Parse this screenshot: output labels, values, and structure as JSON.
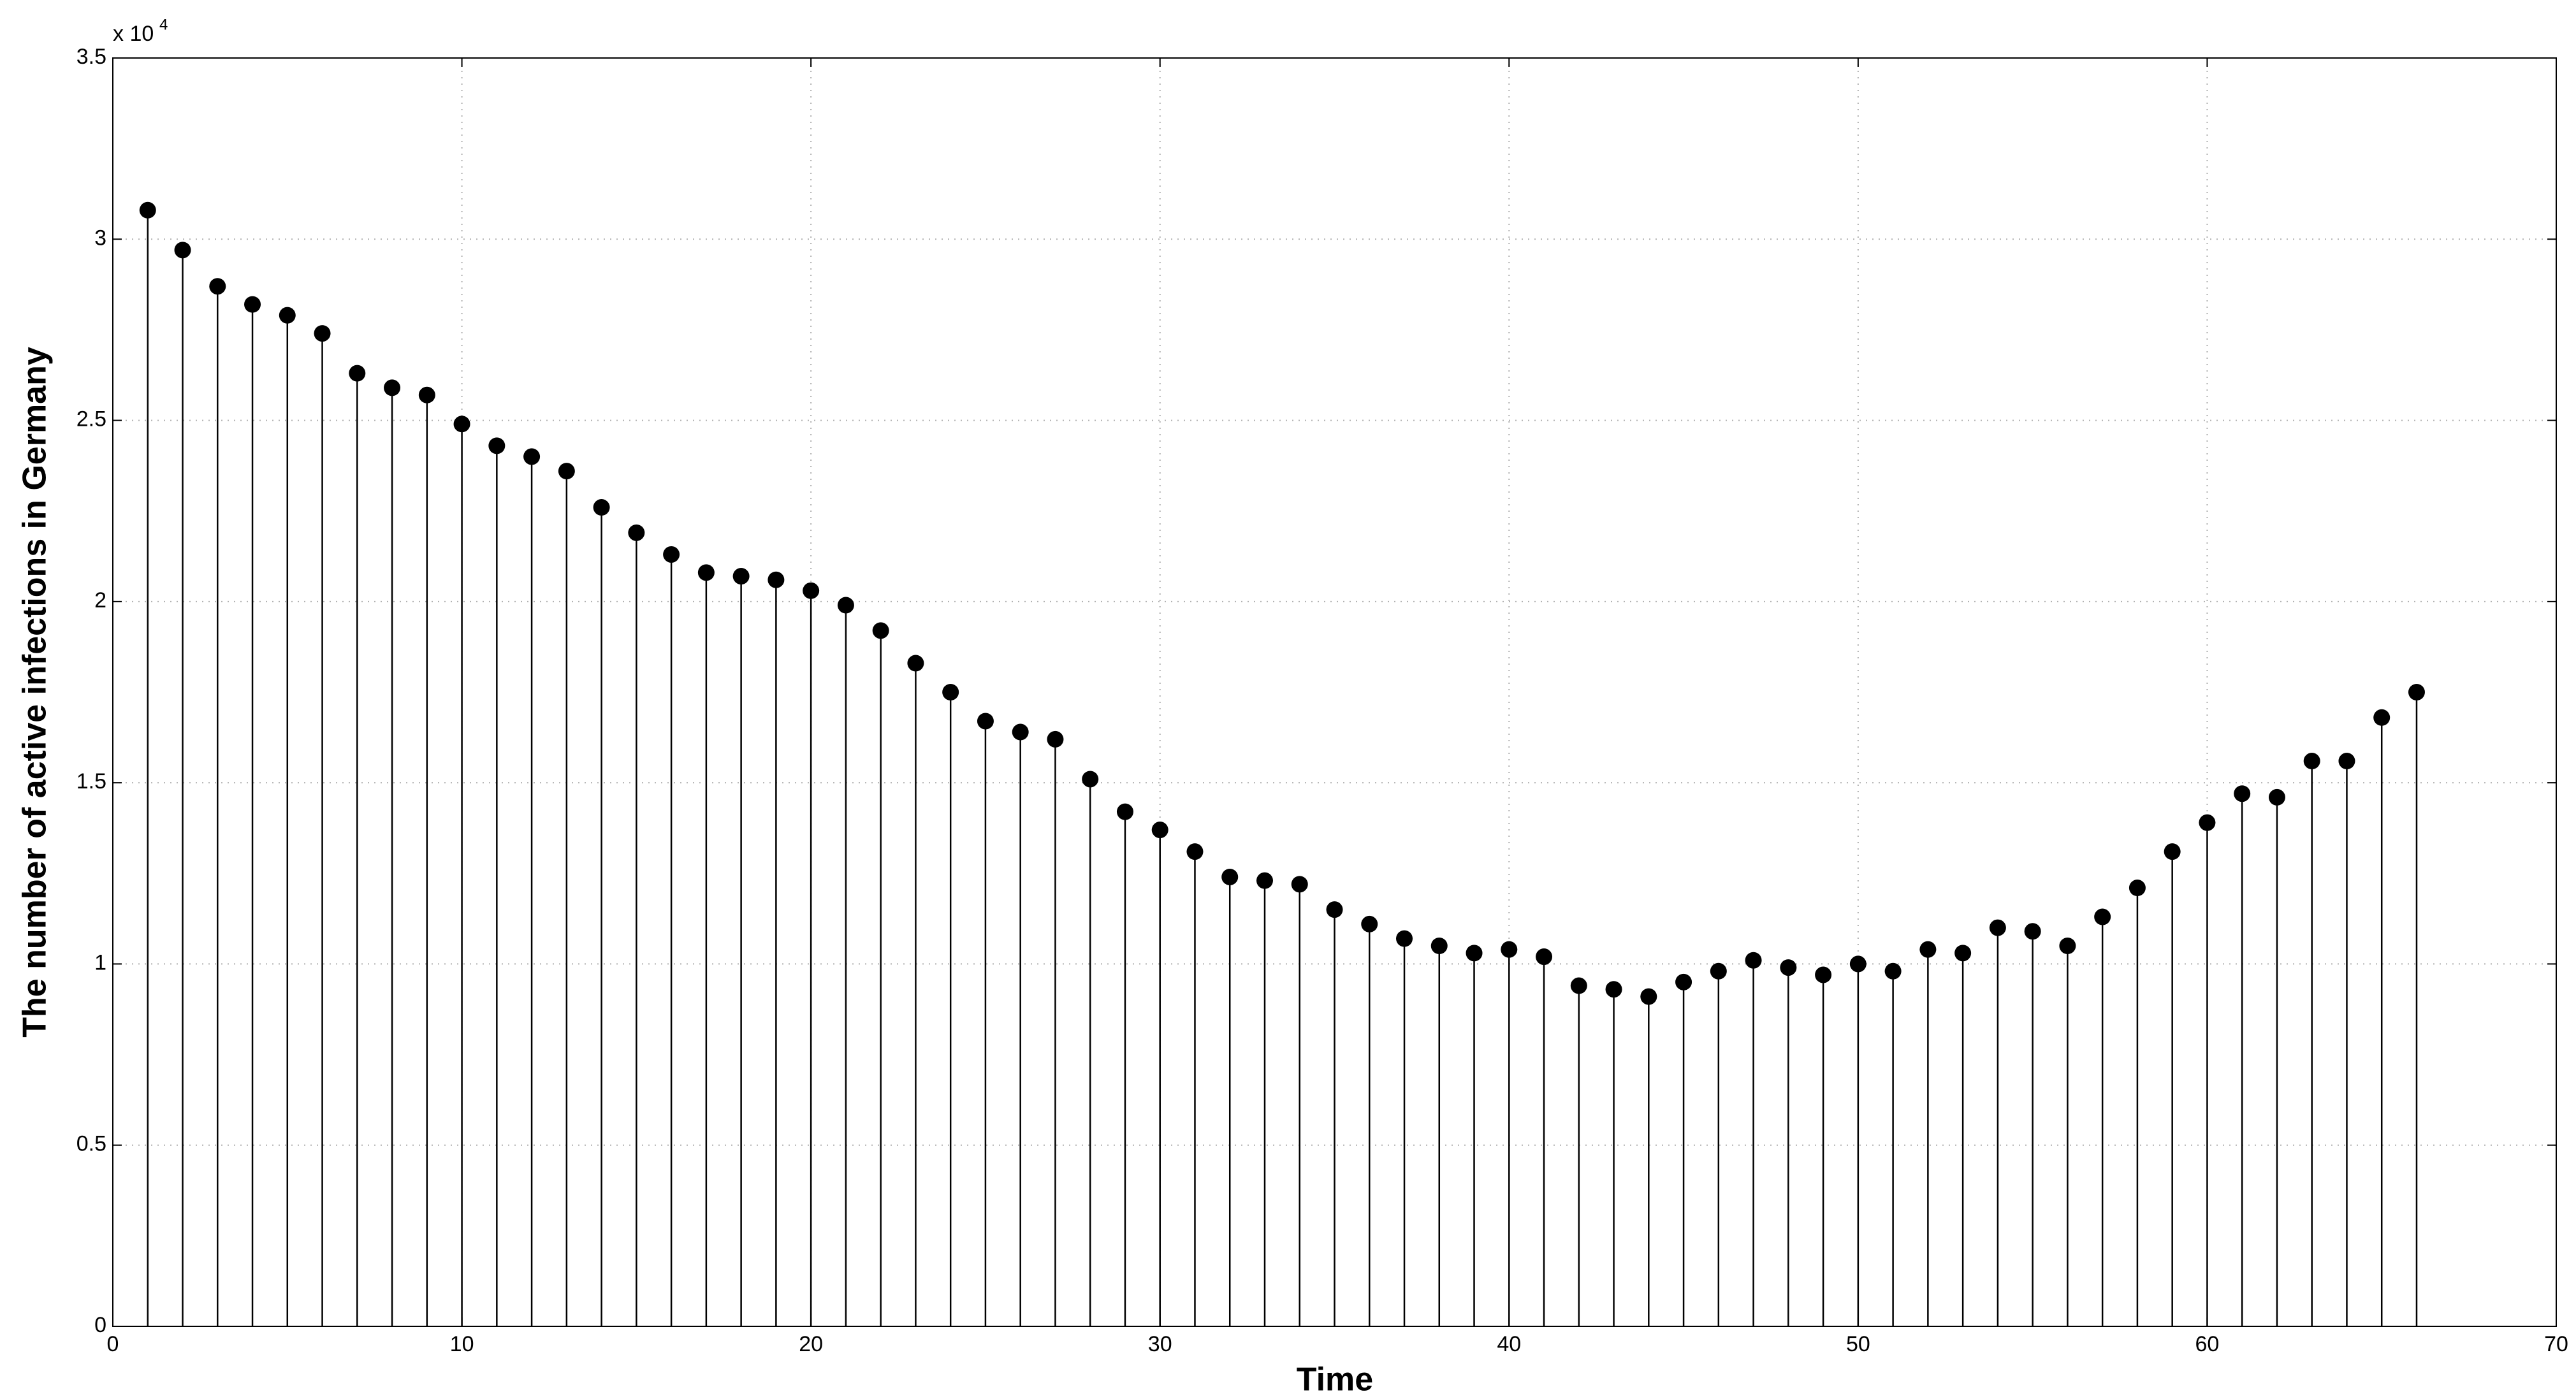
{
  "chart_data": {
    "type": "stem",
    "xlabel": "Time",
    "ylabel": "The number of active infections in Germany",
    "y_scale_label": "x 10",
    "y_scale_exponent": "4",
    "x": [
      1,
      2,
      3,
      4,
      5,
      6,
      7,
      8,
      9,
      10,
      11,
      12,
      13,
      14,
      15,
      16,
      17,
      18,
      19,
      20,
      21,
      22,
      23,
      24,
      25,
      26,
      27,
      28,
      29,
      30,
      31,
      32,
      33,
      34,
      35,
      36,
      37,
      38,
      39,
      40,
      41,
      42,
      43,
      44,
      45,
      46,
      47,
      48,
      49,
      50,
      51,
      52,
      53,
      54,
      55,
      56,
      57,
      58,
      59,
      60,
      61,
      62,
      63,
      64,
      65,
      66
    ],
    "values": [
      30800,
      29700,
      28700,
      28200,
      27900,
      27400,
      26300,
      25900,
      25700,
      24900,
      24300,
      24000,
      23600,
      22600,
      21900,
      21300,
      20800,
      20700,
      20600,
      20300,
      19900,
      19200,
      18300,
      17500,
      16700,
      16400,
      16200,
      15100,
      14200,
      13700,
      13100,
      12400,
      12300,
      12200,
      11500,
      11100,
      10700,
      10500,
      10300,
      10400,
      10200,
      9400,
      9300,
      9100,
      9500,
      9800,
      10100,
      9900,
      9700,
      10000,
      9800,
      10400,
      10300,
      11000,
      10900,
      10500,
      11300,
      12100,
      13100,
      13900,
      14700,
      14600,
      15600,
      15600,
      16800,
      17500
    ],
    "color": "#000000",
    "xlim": [
      0,
      70
    ],
    "xticks": [
      0,
      10,
      20,
      30,
      40,
      50,
      60,
      70
    ],
    "ylim": [
      0,
      35000
    ],
    "yticks": [
      0,
      {
        "value": 5000,
        "label": "0.5"
      },
      {
        "value": 10000,
        "label": "1"
      },
      {
        "value": 15000,
        "label": "1.5"
      },
      {
        "value": 20000,
        "label": "2"
      },
      {
        "value": 25000,
        "label": "2.5"
      },
      {
        "value": 30000,
        "label": "3"
      },
      {
        "value": 35000,
        "label": "3.5"
      }
    ],
    "grid": true
  }
}
